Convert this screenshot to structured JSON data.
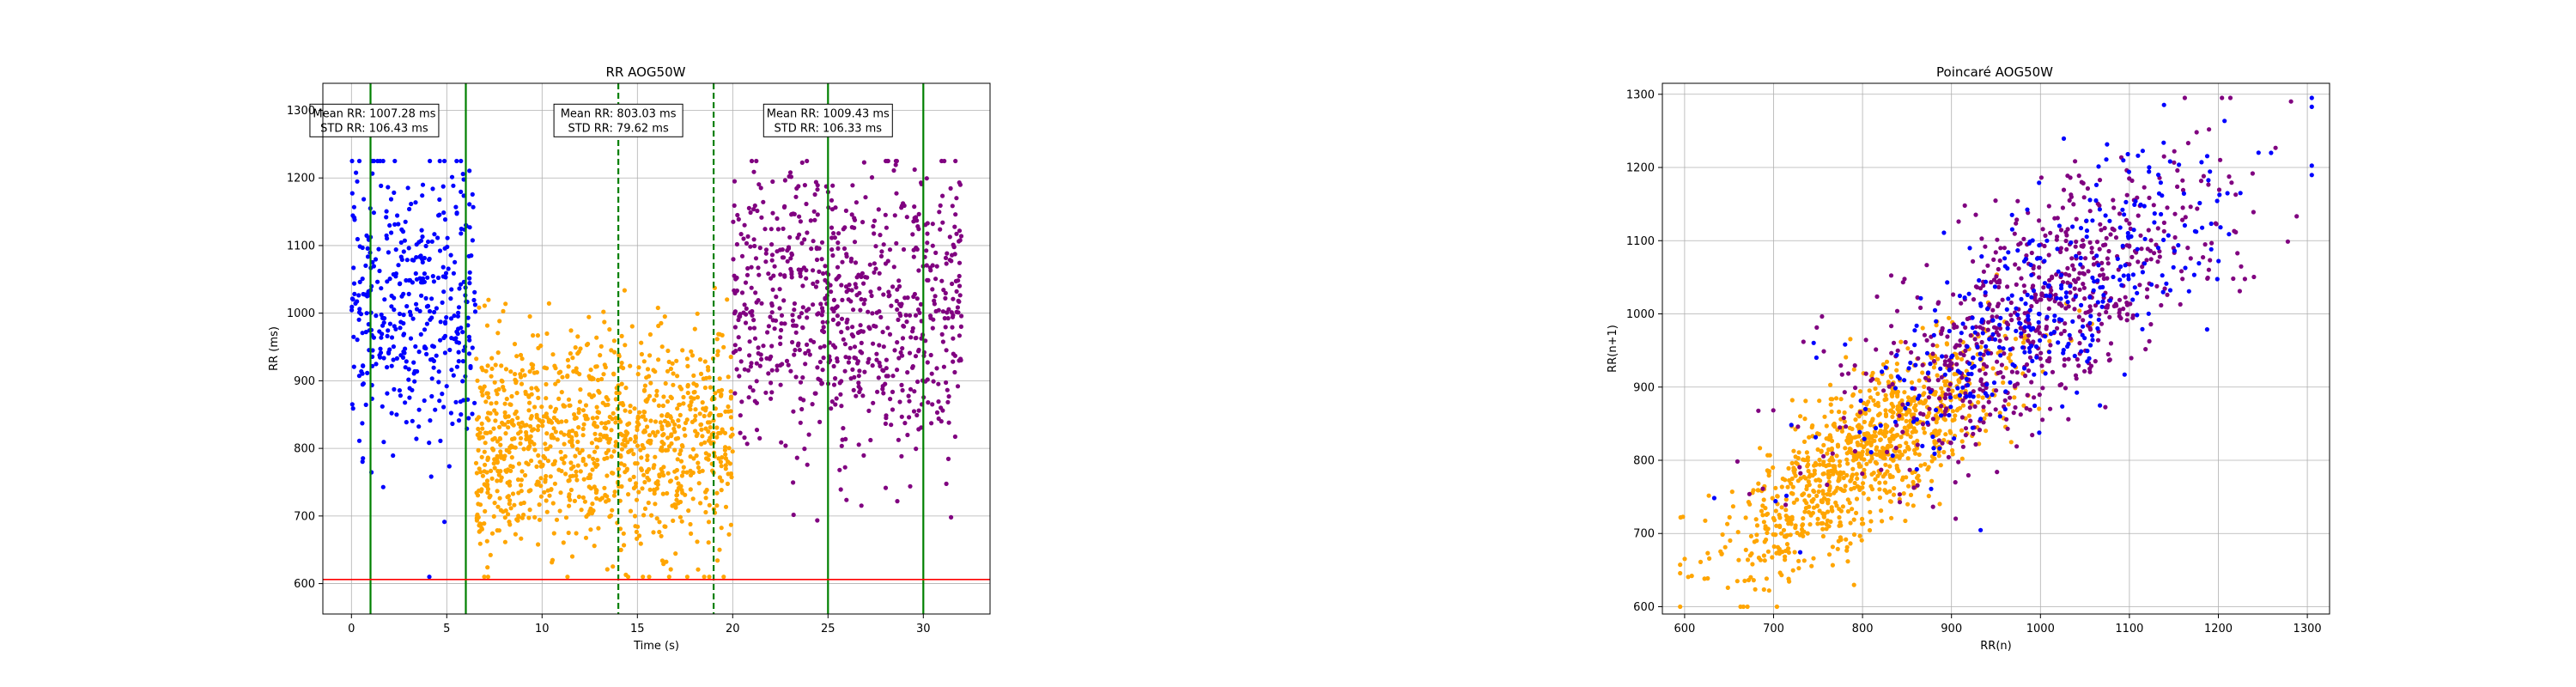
{
  "chart_data": [
    {
      "type": "scatter",
      "title": "RR AOG50W",
      "xlabel": "Time (s)",
      "ylabel": "RR (ms)",
      "xlim": [
        -1.5,
        33.5
      ],
      "ylim": [
        555,
        1340
      ],
      "xticks": [
        0,
        5,
        10,
        15,
        20,
        25,
        30
      ],
      "yticks": [
        600,
        700,
        800,
        900,
        1000,
        1100,
        1200,
        1300
      ],
      "grid": true,
      "hline": {
        "y": 606,
        "color": "#ff0000"
      },
      "vlines": [
        {
          "x": 1.0,
          "color": "#008000",
          "style": "solid"
        },
        {
          "x": 6.0,
          "color": "#008000",
          "style": "solid"
        },
        {
          "x": 14.0,
          "color": "#008000",
          "style": "dashed"
        },
        {
          "x": 19.0,
          "color": "#008000",
          "style": "dashed"
        },
        {
          "x": 25.0,
          "color": "#008000",
          "style": "solid"
        },
        {
          "x": 30.0,
          "color": "#008000",
          "style": "solid"
        }
      ],
      "annotations": [
        {
          "x": 1.2,
          "y": 1285,
          "lines": [
            "Mean RR: 1007.28 ms",
            "STD RR: 106.43 ms"
          ]
        },
        {
          "x": 14.0,
          "y": 1285,
          "lines": [
            "Mean RR: 803.03 ms",
            "STD RR: 79.62 ms"
          ]
        },
        {
          "x": 25.0,
          "y": 1285,
          "lines": [
            "Mean RR: 1009.43 ms",
            "STD RR: 106.33 ms"
          ]
        }
      ],
      "series": [
        {
          "color": "#0000ff",
          "x_range": [
            0,
            6.5
          ],
          "mean": 1007.28,
          "std": 106.43,
          "count": 420,
          "seed": 11
        },
        {
          "color": "#ffa500",
          "x_range": [
            6.5,
            20.0
          ],
          "mean": 803.03,
          "std": 79.62,
          "count": 1100,
          "seed": 23
        },
        {
          "color": "#800080",
          "x_range": [
            20.0,
            32.0
          ],
          "mean": 1009.43,
          "std": 106.33,
          "count": 780,
          "seed": 37
        }
      ]
    },
    {
      "type": "scatter",
      "title": "Poincaré AOG50W",
      "xlabel": "RR(n)",
      "ylabel": "RR(n+1)",
      "xlim": [
        575,
        1325
      ],
      "ylim": [
        590,
        1315
      ],
      "xticks": [
        600,
        700,
        800,
        900,
        1000,
        1100,
        1200,
        1300
      ],
      "yticks": [
        600,
        700,
        800,
        900,
        1000,
        1100,
        1200,
        1300
      ],
      "grid": true,
      "series": [
        {
          "color": "#ffa500",
          "mean": 803.03,
          "std": 79.62,
          "corr": 0.75,
          "count": 1000,
          "seed": 51
        },
        {
          "color": "#800080",
          "mean": 1009.43,
          "std": 106.33,
          "corr": 0.72,
          "count": 700,
          "seed": 63
        },
        {
          "color": "#0000ff",
          "mean": 1007.28,
          "std": 106.43,
          "corr": 0.72,
          "count": 380,
          "seed": 77
        }
      ]
    }
  ]
}
